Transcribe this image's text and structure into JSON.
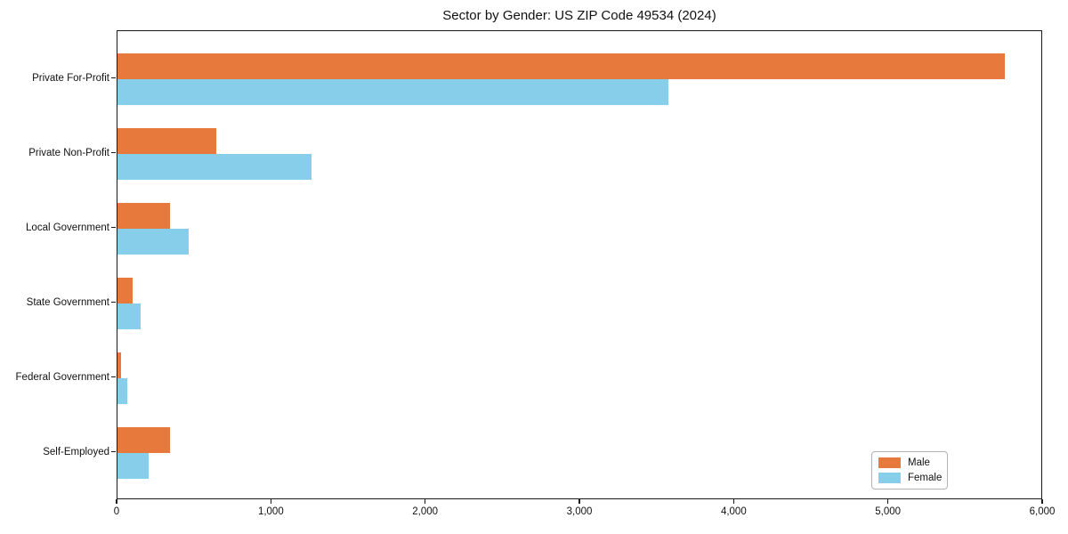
{
  "chart_data": {
    "type": "bar",
    "orientation": "horizontal",
    "title": "Sector by Gender: US ZIP Code 49534 (2024)",
    "categories": [
      "Private For-Profit",
      "Private Non-Profit",
      "Local Government",
      "State Government",
      "Federal Government",
      "Self-Employed"
    ],
    "series": [
      {
        "name": "Male",
        "color": "#e8793c",
        "values": [
          5750,
          640,
          340,
          100,
          20,
          340
        ]
      },
      {
        "name": "Female",
        "color": "#87ceeb",
        "values": [
          3570,
          1260,
          460,
          150,
          65,
          200
        ]
      }
    ],
    "xlabel": "",
    "ylabel": "",
    "xlim": [
      0,
      6000
    ],
    "xtick_values": [
      0,
      1000,
      2000,
      3000,
      4000,
      5000,
      6000
    ],
    "xtick_labels": [
      "0",
      "1,000",
      "2,000",
      "3,000",
      "4,000",
      "5,000",
      "6,000"
    ],
    "grid": false,
    "legend_position": "lower right"
  },
  "colors": {
    "male": "#e8793c",
    "female": "#87ceeb",
    "spine": "#1a1a1a",
    "text": "#111111",
    "legend_border": "#b3b3b3"
  }
}
